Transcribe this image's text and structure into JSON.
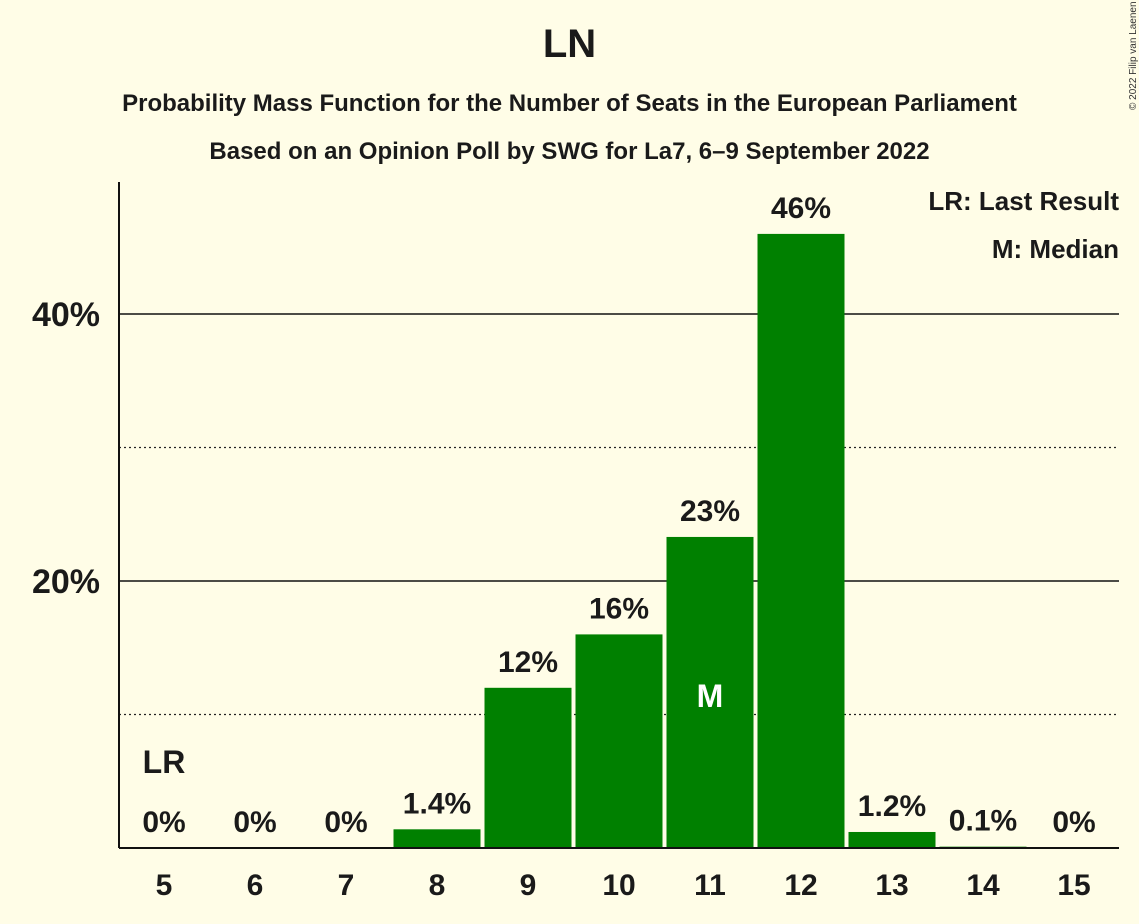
{
  "title": "LN",
  "subtitle_1": "Probability Mass Function for the Number of Seats in the European Parliament",
  "subtitle_2": "Based on an Opinion Poll by SWG for La7, 6–9 September 2022",
  "copyright": "© 2022 Filip van Laenen",
  "legend": {
    "last_result": "LR: Last Result",
    "median": "M: Median"
  },
  "colors": {
    "bar": "#008000",
    "background": "#FFFDE7"
  },
  "chart_data": {
    "type": "bar",
    "categories": [
      "5",
      "6",
      "7",
      "8",
      "9",
      "10",
      "11",
      "12",
      "13",
      "14",
      "15"
    ],
    "values": [
      0,
      0,
      0,
      1.4,
      12,
      16,
      23.3,
      46,
      1.2,
      0.1,
      0
    ],
    "value_labels": [
      "0%",
      "0%",
      "0%",
      "1.4%",
      "12%",
      "16%",
      "23%",
      "46%",
      "1.2%",
      "0.1%",
      "0%"
    ],
    "y_ticks": [
      {
        "value": 20,
        "label": "20%"
      },
      {
        "value": 40,
        "label": "40%"
      }
    ],
    "minor_gridlines": [
      10,
      30
    ],
    "ylim": [
      0,
      50
    ],
    "last_result": {
      "category": "5",
      "label": "LR"
    },
    "median": {
      "category": "11",
      "label": "M"
    },
    "legend_position": "top-right"
  }
}
